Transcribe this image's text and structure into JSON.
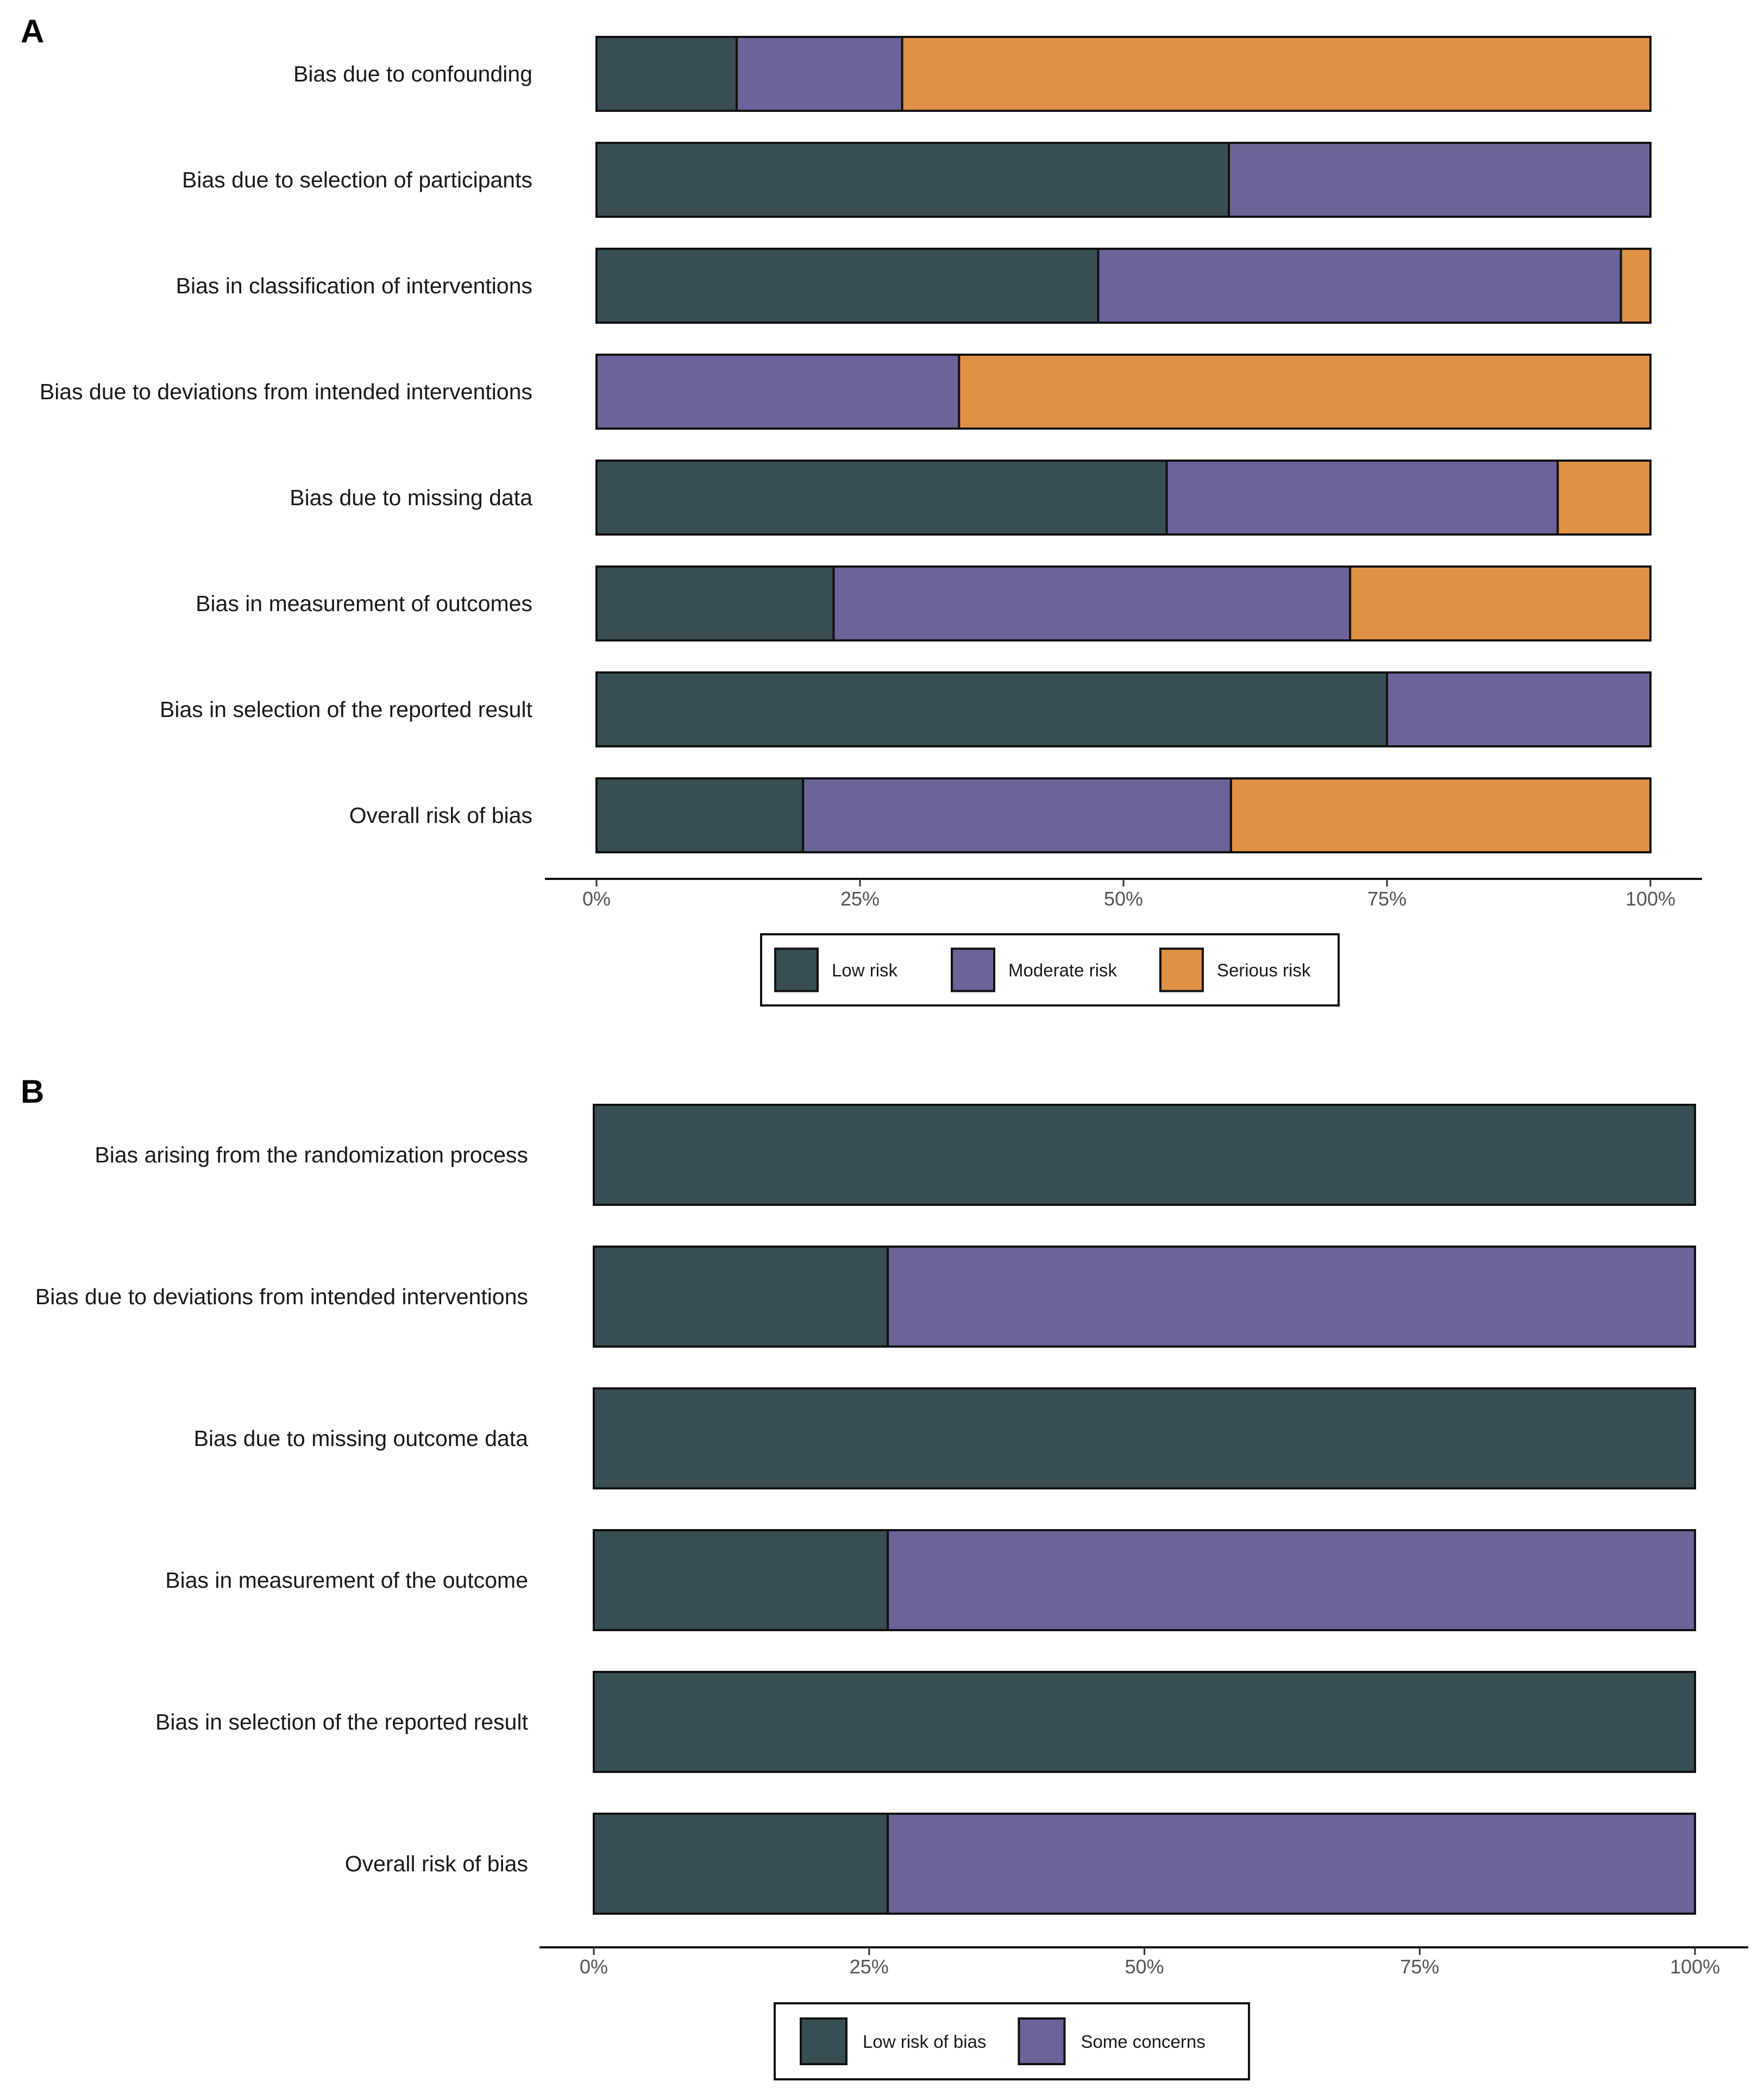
{
  "chart_data": [
    {
      "type": "bar",
      "orientation": "horizontal",
      "stacked": true,
      "panel_label": "A",
      "categories": [
        "Bias due to confounding",
        "Bias due to selection of participants",
        "Bias in classification of interventions",
        "Bias due to deviations from intended interventions",
        "Bias due to missing data",
        "Bias in measurement of outcomes",
        "Bias in selection of the reported result",
        "Overall risk of bias"
      ],
      "series": [
        {
          "name": "Low risk",
          "color": "#384e53",
          "values": [
            13.3,
            60,
            47.6,
            0,
            54.1,
            22.5,
            75,
            19.6
          ]
        },
        {
          "name": "Moderate risk",
          "color": "#6a6499",
          "values": [
            15.7,
            40,
            49.6,
            34.4,
            37.1,
            49.0,
            25,
            40.6
          ]
        },
        {
          "name": "Serious risk",
          "color": "#df9146",
          "values": [
            71.0,
            0,
            2.8,
            65.6,
            8.8,
            28.5,
            0,
            39.8
          ]
        }
      ],
      "x_ticks": [
        "0%",
        "25%",
        "50%",
        "75%",
        "100%"
      ],
      "xlim": [
        0,
        100
      ],
      "legend_position": "bottom-center"
    },
    {
      "type": "bar",
      "orientation": "horizontal",
      "stacked": true,
      "panel_label": "B",
      "categories": [
        "Bias arising from the randomization process",
        "Bias due to deviations from intended interventions",
        "Bias due to missing outcome data",
        "Bias in measurement of the outcome",
        "Bias in selection of the reported result",
        "Overall risk of bias"
      ],
      "series": [
        {
          "name": "Low risk of bias",
          "color": "#384e53",
          "values": [
            100,
            26.7,
            100,
            26.7,
            100,
            26.7
          ]
        },
        {
          "name": "Some concerns",
          "color": "#6a6499",
          "values": [
            0,
            73.3,
            0,
            73.3,
            0,
            73.3
          ]
        }
      ],
      "x_ticks": [
        "0%",
        "25%",
        "50%",
        "75%",
        "100%"
      ],
      "xlim": [
        0,
        100
      ],
      "legend_position": "bottom-center"
    }
  ]
}
